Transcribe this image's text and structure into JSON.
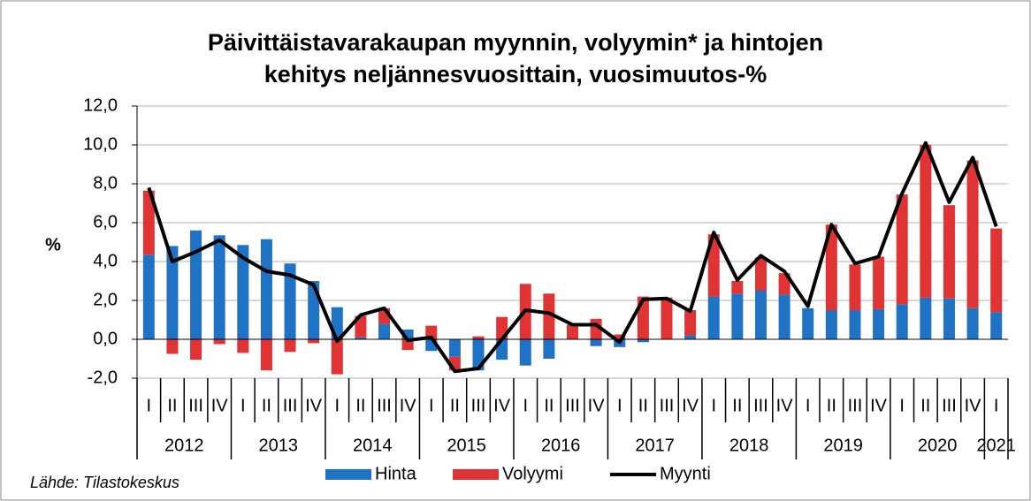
{
  "chart_data": {
    "type": "bar",
    "stacked": true,
    "title": [
      "Päivittäistavarakaupan myynnin, volyymin* ja hintojen",
      "kehitys neljännesvuosittain, vuosimuutos-%"
    ],
    "ylabel": "%",
    "source": "Lähde: Tilastokeskus",
    "categories": [
      "I",
      "II",
      "III",
      "IV",
      "I",
      "II",
      "III",
      "IV",
      "I",
      "II",
      "III",
      "IV",
      "I",
      "II",
      "III",
      "IV",
      "I",
      "II",
      "III",
      "IV",
      "I",
      "II",
      "III",
      "IV",
      "I",
      "II",
      "III",
      "IV",
      "I",
      "II",
      "III",
      "IV",
      "I",
      "II",
      "III",
      "IV",
      "I"
    ],
    "years": [
      "2012",
      "2013",
      "2014",
      "2015",
      "2016",
      "2017",
      "2018",
      "2019",
      "2020",
      "2021"
    ],
    "series": [
      {
        "name": "Hinta",
        "type": "bar",
        "color": "#1f72c4",
        "values": [
          4.35,
          4.8,
          5.6,
          5.35,
          4.85,
          5.15,
          3.9,
          3.0,
          1.65,
          0.1,
          0.8,
          0.5,
          -0.6,
          -0.9,
          -1.6,
          -1.05,
          -1.35,
          -1.0,
          0.0,
          -0.35,
          -0.4,
          -0.15,
          0.0,
          0.2,
          2.2,
          2.35,
          2.5,
          2.3,
          1.6,
          1.5,
          1.5,
          1.55,
          1.8,
          2.15,
          2.1,
          1.6,
          1.4
        ]
      },
      {
        "name": "Volyymi",
        "type": "bar",
        "color": "#e03434",
        "values": [
          3.3,
          -0.75,
          -1.05,
          -0.25,
          -0.7,
          -1.6,
          -0.65,
          -0.2,
          -1.8,
          1.1,
          0.8,
          -0.55,
          0.7,
          -0.7,
          0.15,
          1.15,
          2.85,
          2.35,
          0.75,
          1.05,
          0.25,
          2.2,
          2.15,
          1.3,
          3.2,
          0.65,
          1.7,
          1.1,
          0.0,
          4.4,
          2.35,
          2.7,
          5.65,
          7.85,
          4.8,
          7.6,
          4.3
        ]
      },
      {
        "name": "Myynti",
        "type": "line",
        "color": "#000000",
        "values": [
          7.8,
          4.0,
          4.5,
          5.1,
          4.2,
          3.5,
          3.3,
          2.8,
          -0.1,
          1.25,
          1.6,
          -0.05,
          0.1,
          -1.65,
          -1.5,
          0.0,
          1.5,
          1.35,
          0.75,
          0.75,
          -0.15,
          2.05,
          2.1,
          1.45,
          5.5,
          3.05,
          4.3,
          3.5,
          1.7,
          5.9,
          3.9,
          4.25,
          7.5,
          10.1,
          7.05,
          9.35,
          5.8
        ]
      }
    ],
    "ylim": [
      -2,
      12
    ],
    "yticks": [
      {
        "value": -2,
        "label": "-2,0"
      },
      {
        "value": 0,
        "label": "0,0"
      },
      {
        "value": 2,
        "label": "2,0"
      },
      {
        "value": 4,
        "label": "4,0"
      },
      {
        "value": 6,
        "label": "6,0"
      },
      {
        "value": 8,
        "label": "8,0"
      },
      {
        "value": 10,
        "label": "10,0"
      },
      {
        "value": 12,
        "label": "12,0"
      }
    ],
    "grid": true,
    "legend": "bottom"
  }
}
